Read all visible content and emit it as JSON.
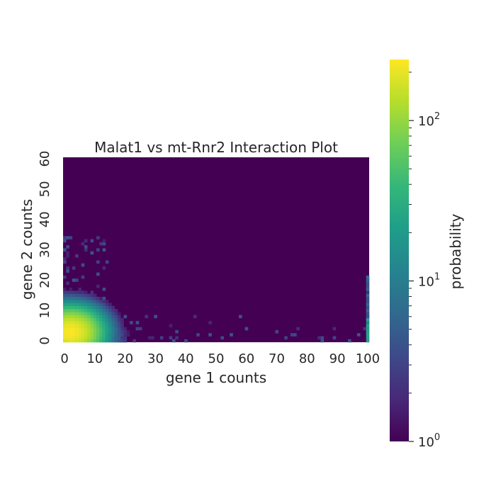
{
  "chart_data": {
    "type": "heatmap",
    "title": "Malat1 vs mt-Rnr2 Interaction Plot",
    "xlabel": "gene 1 counts",
    "ylabel": "gene 2 counts",
    "xlim": [
      0,
      101
    ],
    "ylim": [
      0,
      61
    ],
    "x_ticks": [
      0,
      10,
      20,
      30,
      40,
      50,
      60,
      70,
      80,
      90,
      100
    ],
    "y_ticks": [
      0,
      10,
      20,
      30,
      40,
      50,
      60
    ],
    "colorbar": {
      "label": "probability",
      "scale": "log",
      "min": 1,
      "max": 240,
      "tick_labels": [
        {
          "value": 1,
          "base": "10",
          "exp": "0"
        },
        {
          "value": 10,
          "base": "10",
          "exp": "1"
        },
        {
          "value": 100,
          "base": "10",
          "exp": "2"
        }
      ],
      "colormap": "viridis"
    },
    "background_value": 1,
    "density_model": {
      "peak_value": 230,
      "peak_x": 2,
      "peak_y": 3,
      "note_values": "approximate log-density around origin, decaying with x and y; sparse scatter cells; high column at x=100"
    }
  },
  "colors": {
    "viridis": [
      "#440154",
      "#482878",
      "#3e4989",
      "#31688e",
      "#26828e",
      "#1f9e89",
      "#35b779",
      "#6ece58",
      "#b5de2b",
      "#fde725"
    ]
  }
}
